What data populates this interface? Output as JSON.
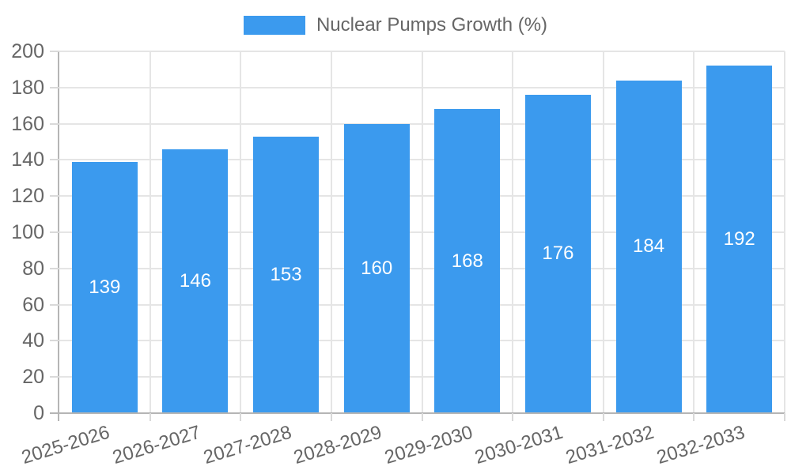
{
  "chart_data": {
    "type": "bar",
    "title": "Nuclear Pumps Growth (%)",
    "categories": [
      "2025-2026",
      "2026-2027",
      "2027-2028",
      "2028-2029",
      "2029-2030",
      "2030-2031",
      "2031-2032",
      "2032-2033"
    ],
    "series": [
      {
        "name": "Nuclear Pumps Growth (%)",
        "values": [
          139,
          146,
          153,
          160,
          168,
          176,
          184,
          192
        ]
      }
    ],
    "value_labels_shown": true,
    "ylim": [
      0,
      200
    ],
    "y_ticks": [
      0,
      20,
      40,
      60,
      80,
      100,
      120,
      140,
      160,
      180,
      200
    ],
    "legend_position": "top",
    "grid": true,
    "x_label_rotation_deg": -17,
    "colors": {
      "bar": "#3B9AEE",
      "bar_value_text": "#ffffff",
      "axis_text": "#666666",
      "gridline": "#e5e5e5",
      "axis_line": "#b5b5b5",
      "tick_mark": "#d9d9d9"
    }
  }
}
